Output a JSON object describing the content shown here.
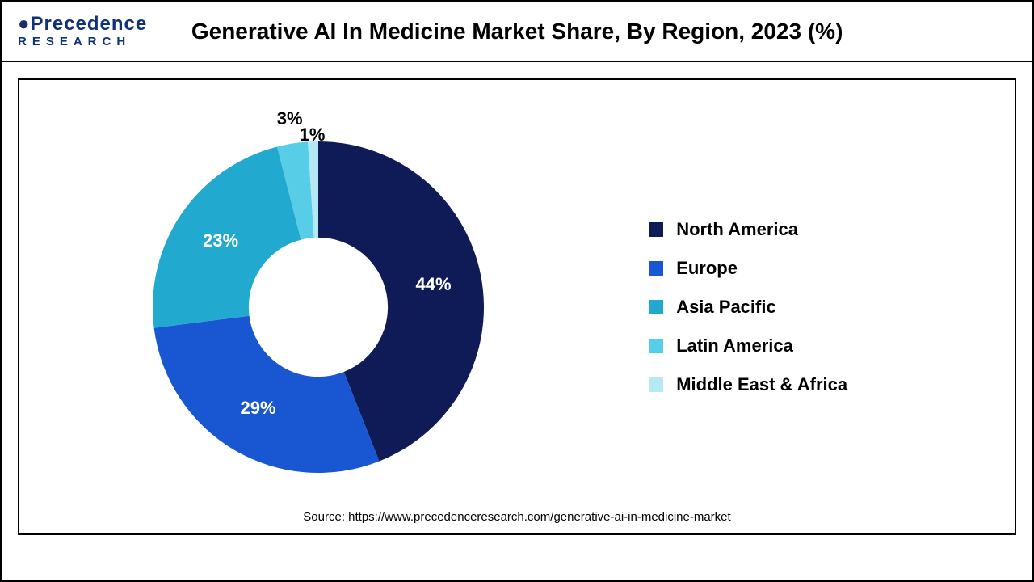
{
  "logo": {
    "line1": "Precedence",
    "line2": "RESEARCH"
  },
  "title": "Generative AI In Medicine Market Share, By Region, 2023 (%)",
  "source": "Source: https://www.precedenceresearch.com/generative-ai-in-medicine-market",
  "chart": {
    "type": "donut",
    "inner_radius_ratio": 0.42,
    "start_angle_deg": 0,
    "background_color": "#ffffff",
    "label_fontsize": 22,
    "label_fontweight": "700",
    "slices": [
      {
        "label": "North America",
        "value": 44,
        "color": "#0f1b57",
        "pct_text": "44%",
        "label_color": "#ffffff"
      },
      {
        "label": "Europe",
        "value": 29,
        "color": "#1957d2",
        "pct_text": "29%",
        "label_color": "#ffffff"
      },
      {
        "label": "Asia Pacific",
        "value": 23,
        "color": "#22a9cf",
        "pct_text": "23%",
        "label_color": "#ffffff"
      },
      {
        "label": "Latin America",
        "value": 3,
        "color": "#58cde7",
        "pct_text": "3%",
        "label_color": "#000000"
      },
      {
        "label": "Middle East & Africa",
        "value": 1,
        "color": "#b3e8f4",
        "pct_text": "1%",
        "label_color": "#000000"
      }
    ]
  },
  "legend": {
    "fontsize": 22,
    "fontweight": "700",
    "swatch_size": 18
  }
}
